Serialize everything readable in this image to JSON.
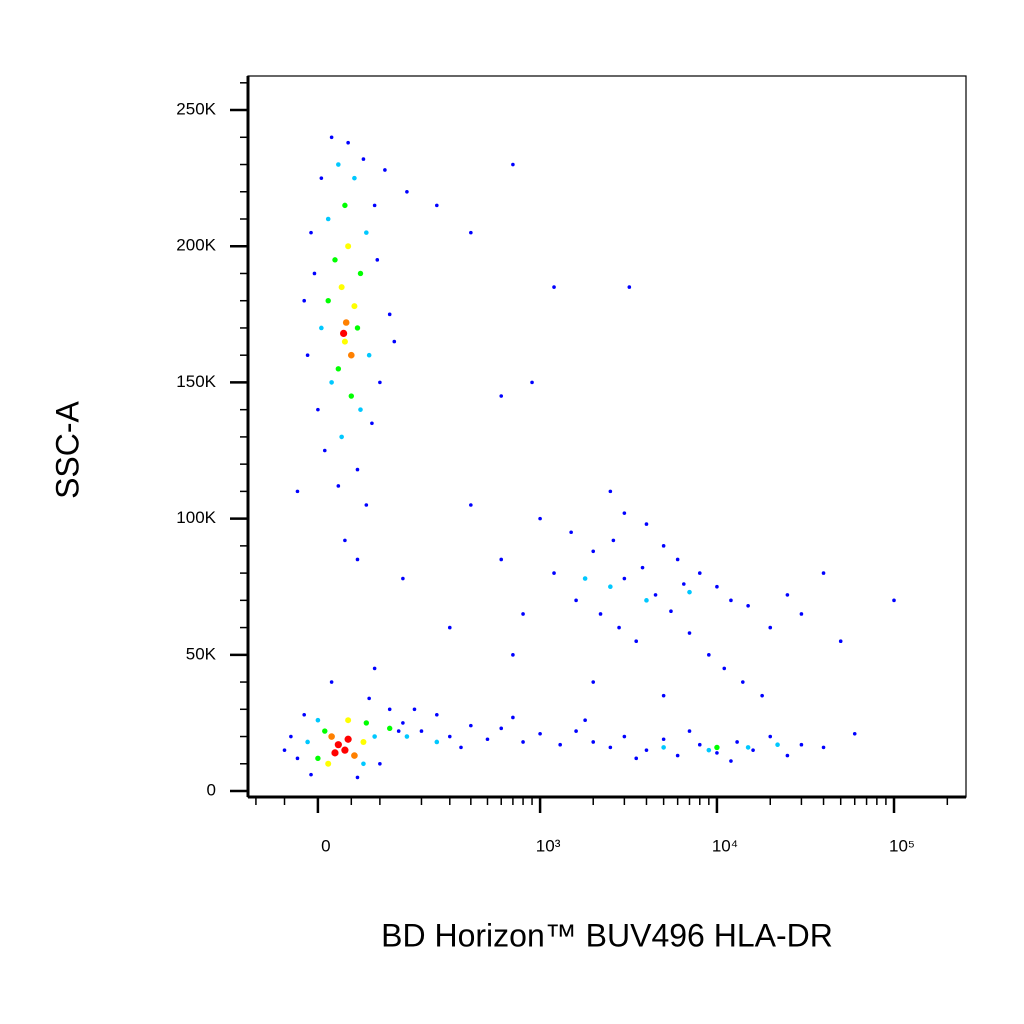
{
  "chart_data": {
    "type": "scatter",
    "xlabel": "BD Horizon™ BUV496 HLA-DR",
    "ylabel": "SSC-A",
    "xscale": "biexponential",
    "xlim": [
      -116,
      255000
    ],
    "ylim": [
      -2200,
      262500
    ],
    "xticks": [
      0,
      {
        "value": 1000,
        "label": "10³"
      },
      {
        "value": 10000,
        "label": "10⁴"
      },
      {
        "value": 100000,
        "label": "10⁵"
      }
    ],
    "xminorticks": [
      -100,
      -50,
      50,
      100,
      200,
      300,
      400,
      500,
      600,
      700,
      800,
      900,
      2000,
      3000,
      4000,
      5000,
      6000,
      7000,
      8000,
      9000,
      20000,
      30000,
      40000,
      50000,
      60000,
      70000,
      80000,
      90000,
      200000
    ],
    "yticks": [
      0,
      {
        "value": 50000,
        "label": "50K"
      },
      {
        "value": 100000,
        "label": "100K"
      },
      {
        "value": 150000,
        "label": "150K"
      },
      {
        "value": 200000,
        "label": "200K"
      },
      {
        "value": 250000,
        "label": "250K"
      }
    ],
    "yminorticks": [
      10000,
      20000,
      30000,
      40000,
      60000,
      70000,
      80000,
      90000,
      110000,
      120000,
      130000,
      140000,
      160000,
      170000,
      180000,
      190000,
      210000,
      220000,
      230000,
      240000,
      260000
    ],
    "series": [
      {
        "color": "#0000ff",
        "x": [
          20,
          45,
          70,
          5,
          90,
          110,
          -10,
          95,
          -20,
          120,
          -15,
          100,
          0,
          85,
          10,
          60,
          30,
          75,
          130,
          -5,
          160,
          250,
          400,
          700,
          1200,
          3200,
          600,
          900,
          -30,
          40,
          60,
          -30,
          -40,
          -20,
          100,
          120,
          80,
          -10,
          60,
          140,
          -50,
          20,
          90,
          150,
          200,
          250,
          300,
          400,
          500,
          600,
          800,
          1000,
          1300,
          1600,
          2000,
          2500,
          3000,
          4000,
          5000,
          6000,
          8000,
          10000,
          13000,
          16000,
          20000,
          25000,
          30000,
          40000,
          60000,
          180,
          350,
          700,
          1800,
          3500,
          7000,
          12000,
          1000,
          1500,
          2000,
          2500,
          3000,
          4000,
          5000,
          6000,
          8000,
          10000,
          12000,
          15000,
          20000,
          25000,
          30000,
          40000,
          50000,
          1200,
          1600,
          2200,
          2800,
          3500,
          4500,
          5500,
          7000,
          9000,
          11000,
          14000,
          18000,
          600,
          800,
          400,
          300,
          150,
          700,
          2000,
          5000,
          3000,
          3800,
          6500,
          2600,
          100000
        ],
        "values": [
          240000,
          238000,
          232000,
          225000,
          215000,
          228000,
          205000,
          195000,
          180000,
          175000,
          160000,
          150000,
          140000,
          135000,
          125000,
          118000,
          112000,
          105000,
          165000,
          190000,
          220000,
          215000,
          205000,
          230000,
          185000,
          185000,
          145000,
          150000,
          110000,
          92000,
          85000,
          12000,
          20000,
          28000,
          10000,
          30000,
          34000,
          6000,
          5000,
          22000,
          15000,
          40000,
          45000,
          25000,
          22000,
          28000,
          20000,
          24000,
          19000,
          23000,
          18000,
          21000,
          17000,
          22000,
          18000,
          16000,
          20000,
          15000,
          19000,
          13000,
          17000,
          14000,
          18000,
          15000,
          20000,
          13000,
          17000,
          16000,
          21000,
          30000,
          16000,
          27000,
          26000,
          12000,
          22000,
          11000,
          100000,
          95000,
          88000,
          110000,
          102000,
          98000,
          90000,
          85000,
          80000,
          75000,
          70000,
          68000,
          60000,
          72000,
          65000,
          80000,
          55000,
          80000,
          70000,
          65000,
          60000,
          55000,
          72000,
          66000,
          58000,
          50000,
          45000,
          40000,
          35000,
          85000,
          65000,
          105000,
          60000,
          78000,
          50000,
          40000,
          35000,
          78000,
          82000,
          76000,
          92000,
          70000
        ]
      },
      {
        "color": "#00c8ff",
        "x": [
          30,
          55,
          15,
          75,
          5,
          80,
          20,
          65,
          35,
          -15,
          90,
          0,
          70,
          160,
          250,
          5000,
          9000,
          15000,
          22000,
          2500,
          4000,
          7000,
          1800
        ],
        "values": [
          230000,
          225000,
          210000,
          205000,
          170000,
          160000,
          150000,
          140000,
          130000,
          18000,
          20000,
          26000,
          10000,
          20000,
          18000,
          16000,
          15000,
          16000,
          17000,
          75000,
          70000,
          73000,
          78000
        ]
      },
      {
        "color": "#00ff00",
        "x": [
          40,
          25,
          65,
          15,
          60,
          30,
          50,
          0,
          75,
          10,
          120,
          10000
        ],
        "values": [
          215000,
          195000,
          190000,
          180000,
          170000,
          155000,
          145000,
          12000,
          25000,
          22000,
          23000,
          16000
        ]
      },
      {
        "color": "#ffff00",
        "x": [
          45,
          35,
          55,
          40,
          15,
          70,
          45
        ],
        "values": [
          200000,
          185000,
          178000,
          165000,
          10000,
          18000,
          26000
        ]
      },
      {
        "color": "#ff8000",
        "x": [
          42,
          50,
          20,
          55
        ],
        "values": [
          172000,
          160000,
          20000,
          13000
        ]
      },
      {
        "color": "#ff0000",
        "x": [
          38,
          30,
          40,
          25,
          45
        ],
        "values": [
          168000,
          17000,
          15000,
          14000,
          19000
        ]
      }
    ]
  }
}
